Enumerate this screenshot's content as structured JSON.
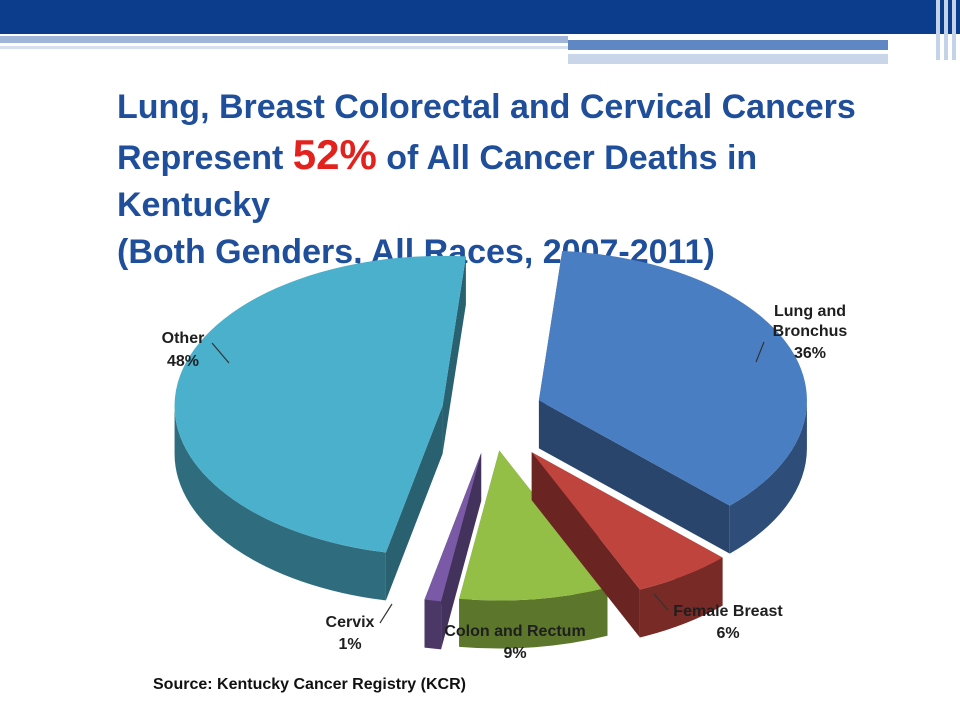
{
  "title": {
    "before": "Lung, Breast Colorectal and Cervical Cancers Represent ",
    "highlight": "52%",
    "after": " of All Cancer Deaths in Kentucky",
    "line4": "(Both Genders, All Races, 2007-2011)"
  },
  "colors": {
    "title": "#1f4e9b",
    "highlight": "#e3211d",
    "banner": "#0b3d8c"
  },
  "chart_data": {
    "type": "pie",
    "style": "3d-exploded",
    "slices": [
      {
        "label": "Lung and Bronchus",
        "value": 36,
        "value_label": "36%",
        "color": "#4a7ec3"
      },
      {
        "label": "Female Breast",
        "value": 6,
        "value_label": "6%",
        "color": "#c0443e"
      },
      {
        "label": "Colon and Rectum",
        "value": 9,
        "value_label": "9%",
        "color": "#94bf47"
      },
      {
        "label": "Cervix",
        "value": 1,
        "value_label": "1%",
        "color": "#7a5aa6"
      },
      {
        "label": "Other",
        "value": 48,
        "value_label": "48%",
        "color": "#4bb0cc"
      }
    ]
  },
  "source": "Source: Kentucky Cancer Registry (KCR)"
}
